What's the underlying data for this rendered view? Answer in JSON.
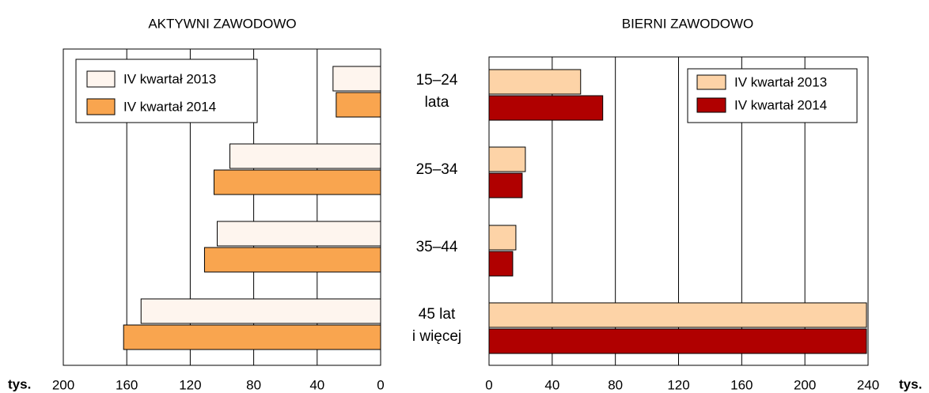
{
  "chart_data": [
    {
      "type": "bar",
      "orientation": "horizontal",
      "title": "AKTYWNI ZAWODOWO",
      "xlabel": "tys.",
      "categories": [
        [
          "15–24",
          "lata"
        ],
        [
          "25–34"
        ],
        [
          "35–44"
        ],
        [
          "45 lat",
          "i więcej"
        ]
      ],
      "series": [
        {
          "name": "IV kwartał 2013",
          "color": "#fef5ee",
          "values": [
            30,
            95,
            103,
            151
          ]
        },
        {
          "name": "IV kwartał 2014",
          "color": "#f9a54f",
          "values": [
            28,
            105,
            111,
            162
          ]
        }
      ],
      "xlim": [
        0,
        200
      ],
      "xticks": [
        0,
        40,
        80,
        120,
        160,
        200
      ],
      "x_reversed": true,
      "grid": true,
      "legend": "upper left"
    },
    {
      "type": "bar",
      "orientation": "horizontal",
      "title": "BIERNI ZAWODOWO",
      "xlabel": "tys.",
      "series": [
        {
          "name": "IV kwartał 2013",
          "color": "#fdd3a7",
          "values": [
            58,
            23,
            17,
            239
          ]
        },
        {
          "name": "IV kwartał 2014",
          "color": "#b00000",
          "values": [
            72,
            21,
            15,
            239
          ]
        }
      ],
      "xlim": [
        0,
        240
      ],
      "xticks": [
        0,
        40,
        80,
        120,
        160,
        200,
        240
      ],
      "x_reversed": false,
      "grid": true,
      "legend": "upper right"
    }
  ]
}
